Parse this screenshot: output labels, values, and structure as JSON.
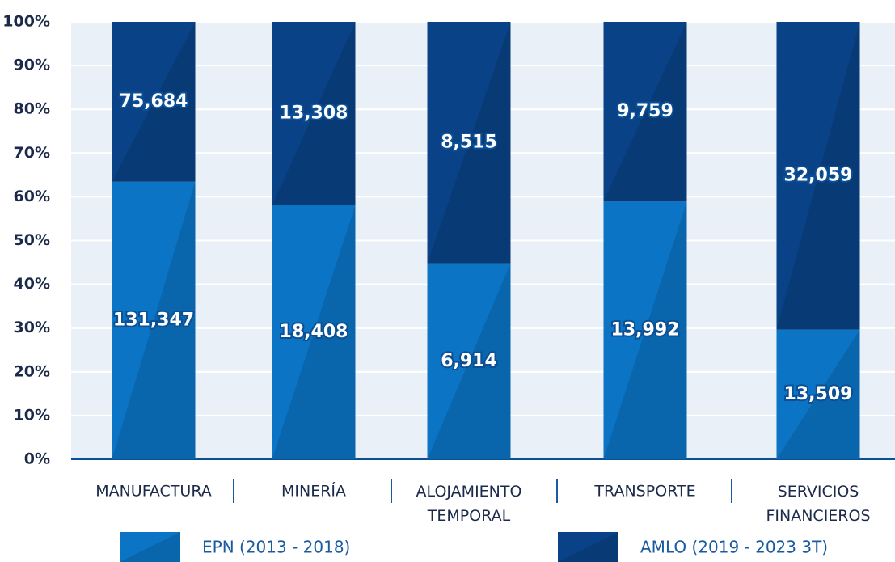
{
  "chart_data": {
    "type": "bar",
    "stacked": "percent",
    "categories": [
      "MANUFACTURA",
      "MINERÍA",
      "ALOJAMIENTO TEMPORAL",
      "TRANSPORTE",
      "SERVICIOS FINANCIEROS"
    ],
    "series": [
      {
        "name": "EPN (2013 - 2018)",
        "color": "#0b74c4",
        "values": [
          131347,
          18408,
          6914,
          13992,
          13509
        ],
        "value_labels": [
          "131,347",
          "18,408",
          "6,914",
          "13,992",
          "13,509"
        ]
      },
      {
        "name": "AMLO (2019 - 2023 3T)",
        "color": "#0a4287",
        "values": [
          75684,
          13308,
          8515,
          9759,
          32059
        ],
        "value_labels": [
          "75,684",
          "13,308",
          "8,515",
          "9,759",
          "32,059"
        ]
      }
    ],
    "ylim": [
      0,
      100
    ],
    "yticks": [
      {
        "value": 0,
        "label": "0%"
      },
      {
        "value": 10,
        "label": "10%"
      },
      {
        "value": 20,
        "label": "20%"
      },
      {
        "value": 30,
        "label": "30%"
      },
      {
        "value": 40,
        "label": "40%"
      },
      {
        "value": 50,
        "label": "50%"
      },
      {
        "value": 60,
        "label": "60%"
      },
      {
        "value": 70,
        "label": "70%"
      },
      {
        "value": 80,
        "label": "80%"
      },
      {
        "value": 90,
        "label": "90%"
      },
      {
        "value": 100,
        "label": "100%"
      }
    ],
    "grid": true,
    "legend": "bottom"
  }
}
